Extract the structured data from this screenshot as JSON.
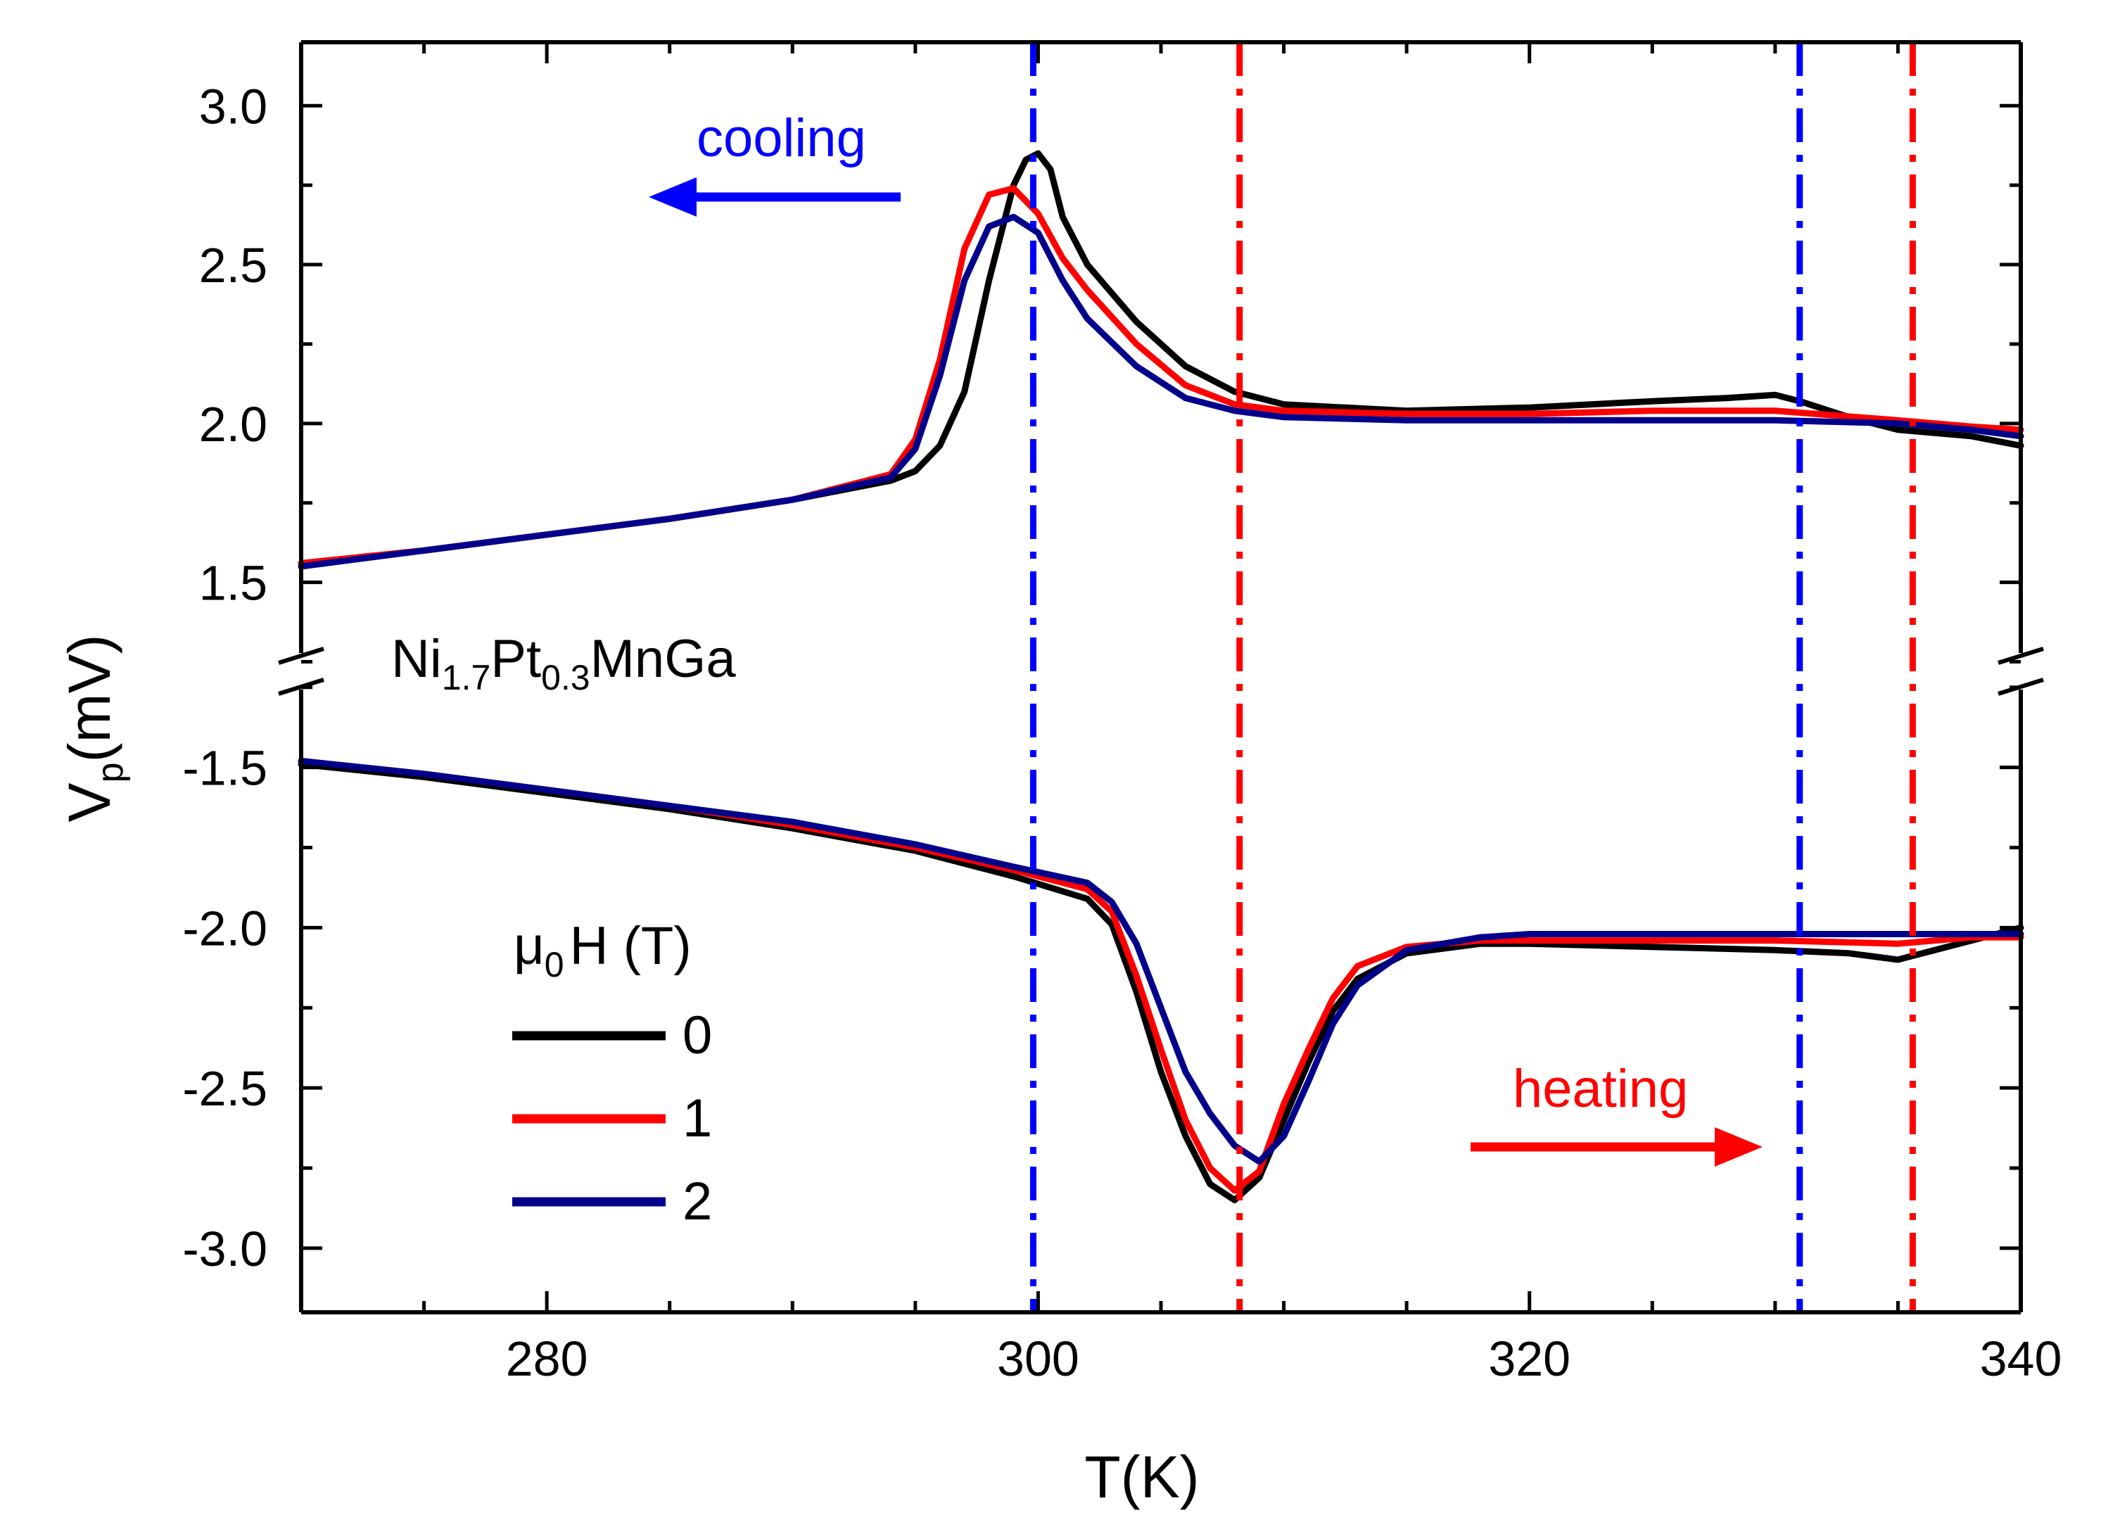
{
  "chart_data": {
    "type": "line",
    "title": "",
    "xlabel": "T(K)",
    "ylabel": "V_p(mV)",
    "ylabel_main": "V",
    "ylabel_sub": "p",
    "ylabel_unit": "(mV)",
    "xlim": [
      270,
      340
    ],
    "xticks": [
      280,
      300,
      320,
      340
    ],
    "upper_panel": {
      "ylim": [
        1.22,
        3.2
      ],
      "yticks": [
        1.5,
        2.0,
        2.5,
        3.0
      ],
      "direction": "cooling"
    },
    "lower_panel": {
      "ylim": [
        -3.2,
        -1.2
      ],
      "yticks": [
        -1.5,
        -2.0,
        -2.5,
        -3.0
      ],
      "direction": "heating"
    },
    "sample": {
      "el1": "Ni",
      "sub1": "1.7",
      "el2": "Pt",
      "sub2": "0.3",
      "el3": "MnGa"
    },
    "annotations": {
      "cooling": "cooling",
      "heating": "heating"
    },
    "legend": {
      "title_main": "μ",
      "title_sub": "0",
      "title_rest": "H (T)",
      "placement": "lower-left"
    },
    "vlines": [
      {
        "x": 299.8,
        "color": "#0000ff",
        "label": "cooling-peak"
      },
      {
        "x": 308.2,
        "color": "#ff0000",
        "label": "heating-dip"
      },
      {
        "x": 331.0,
        "color": "#0000ff",
        "label": "cooling-onset"
      },
      {
        "x": 335.6,
        "color": "#ff0000",
        "label": "heating-onset"
      }
    ],
    "series": [
      {
        "name": "0",
        "color": "#000000",
        "upper": [
          [
            270,
            1.56
          ],
          [
            275,
            1.6
          ],
          [
            280,
            1.65
          ],
          [
            285,
            1.7
          ],
          [
            290,
            1.76
          ],
          [
            294,
            1.82
          ],
          [
            295,
            1.85
          ],
          [
            296,
            1.93
          ],
          [
            297,
            2.1
          ],
          [
            298,
            2.45
          ],
          [
            299,
            2.75
          ],
          [
            299.5,
            2.83
          ],
          [
            300,
            2.85
          ],
          [
            300.5,
            2.8
          ],
          [
            301,
            2.65
          ],
          [
            302,
            2.5
          ],
          [
            304,
            2.32
          ],
          [
            306,
            2.18
          ],
          [
            308,
            2.1
          ],
          [
            310,
            2.06
          ],
          [
            315,
            2.04
          ],
          [
            320,
            2.05
          ],
          [
            325,
            2.07
          ],
          [
            328,
            2.08
          ],
          [
            330,
            2.09
          ],
          [
            331,
            2.07
          ],
          [
            333,
            2.02
          ],
          [
            335,
            1.98
          ],
          [
            338,
            1.96
          ],
          [
            340,
            1.93
          ]
        ],
        "lower": [
          [
            270,
            -1.49
          ],
          [
            275,
            -1.53
          ],
          [
            280,
            -1.58
          ],
          [
            285,
            -1.63
          ],
          [
            290,
            -1.69
          ],
          [
            295,
            -1.76
          ],
          [
            299,
            -1.84
          ],
          [
            302,
            -1.91
          ],
          [
            303,
            -1.99
          ],
          [
            304,
            -2.2
          ],
          [
            305,
            -2.45
          ],
          [
            306,
            -2.65
          ],
          [
            307,
            -2.8
          ],
          [
            308,
            -2.85
          ],
          [
            309,
            -2.78
          ],
          [
            310,
            -2.6
          ],
          [
            311,
            -2.42
          ],
          [
            312,
            -2.26
          ],
          [
            313,
            -2.16
          ],
          [
            315,
            -2.08
          ],
          [
            318,
            -2.05
          ],
          [
            320,
            -2.05
          ],
          [
            325,
            -2.06
          ],
          [
            330,
            -2.07
          ],
          [
            333,
            -2.08
          ],
          [
            335,
            -2.1
          ],
          [
            338,
            -2.04
          ],
          [
            340,
            -2.0
          ]
        ]
      },
      {
        "name": "1",
        "color": "#ff0000",
        "upper": [
          [
            270,
            1.56
          ],
          [
            275,
            1.6
          ],
          [
            280,
            1.65
          ],
          [
            285,
            1.7
          ],
          [
            290,
            1.76
          ],
          [
            294,
            1.84
          ],
          [
            295,
            1.95
          ],
          [
            296,
            2.2
          ],
          [
            297,
            2.55
          ],
          [
            298,
            2.72
          ],
          [
            299,
            2.74
          ],
          [
            300,
            2.66
          ],
          [
            301,
            2.52
          ],
          [
            302,
            2.42
          ],
          [
            304,
            2.25
          ],
          [
            306,
            2.12
          ],
          [
            308,
            2.06
          ],
          [
            310,
            2.04
          ],
          [
            315,
            2.03
          ],
          [
            320,
            2.03
          ],
          [
            325,
            2.04
          ],
          [
            330,
            2.04
          ],
          [
            335,
            2.01
          ],
          [
            338,
            1.99
          ],
          [
            340,
            1.98
          ]
        ],
        "lower": [
          [
            270,
            -1.48
          ],
          [
            275,
            -1.52
          ],
          [
            280,
            -1.57
          ],
          [
            285,
            -1.62
          ],
          [
            290,
            -1.68
          ],
          [
            295,
            -1.75
          ],
          [
            299,
            -1.82
          ],
          [
            302,
            -1.88
          ],
          [
            303,
            -1.95
          ],
          [
            304,
            -2.15
          ],
          [
            305,
            -2.38
          ],
          [
            306,
            -2.6
          ],
          [
            307,
            -2.75
          ],
          [
            308,
            -2.82
          ],
          [
            309,
            -2.76
          ],
          [
            310,
            -2.55
          ],
          [
            311,
            -2.38
          ],
          [
            312,
            -2.22
          ],
          [
            313,
            -2.12
          ],
          [
            315,
            -2.06
          ],
          [
            318,
            -2.04
          ],
          [
            320,
            -2.04
          ],
          [
            325,
            -2.04
          ],
          [
            330,
            -2.04
          ],
          [
            335,
            -2.05
          ],
          [
            338,
            -2.03
          ],
          [
            340,
            -2.03
          ]
        ]
      },
      {
        "name": "2",
        "color": "#00008b",
        "upper": [
          [
            270,
            1.55
          ],
          [
            275,
            1.6
          ],
          [
            280,
            1.65
          ],
          [
            285,
            1.7
          ],
          [
            290,
            1.76
          ],
          [
            294,
            1.83
          ],
          [
            295,
            1.92
          ],
          [
            296,
            2.15
          ],
          [
            297,
            2.45
          ],
          [
            298,
            2.62
          ],
          [
            299,
            2.65
          ],
          [
            300,
            2.6
          ],
          [
            301,
            2.45
          ],
          [
            302,
            2.33
          ],
          [
            304,
            2.18
          ],
          [
            306,
            2.08
          ],
          [
            308,
            2.04
          ],
          [
            310,
            2.02
          ],
          [
            315,
            2.01
          ],
          [
            320,
            2.01
          ],
          [
            325,
            2.01
          ],
          [
            330,
            2.01
          ],
          [
            335,
            2.0
          ],
          [
            338,
            1.98
          ],
          [
            340,
            1.96
          ]
        ],
        "lower": [
          [
            270,
            -1.48
          ],
          [
            275,
            -1.52
          ],
          [
            280,
            -1.57
          ],
          [
            285,
            -1.62
          ],
          [
            290,
            -1.67
          ],
          [
            295,
            -1.74
          ],
          [
            299,
            -1.81
          ],
          [
            302,
            -1.86
          ],
          [
            303,
            -1.92
          ],
          [
            304,
            -2.05
          ],
          [
            305,
            -2.25
          ],
          [
            306,
            -2.45
          ],
          [
            307,
            -2.58
          ],
          [
            308,
            -2.68
          ],
          [
            309,
            -2.73
          ],
          [
            310,
            -2.65
          ],
          [
            311,
            -2.48
          ],
          [
            312,
            -2.3
          ],
          [
            313,
            -2.18
          ],
          [
            315,
            -2.07
          ],
          [
            318,
            -2.03
          ],
          [
            320,
            -2.02
          ],
          [
            325,
            -2.02
          ],
          [
            330,
            -2.02
          ],
          [
            335,
            -2.02
          ],
          [
            338,
            -2.02
          ],
          [
            340,
            -2.02
          ]
        ]
      }
    ]
  }
}
